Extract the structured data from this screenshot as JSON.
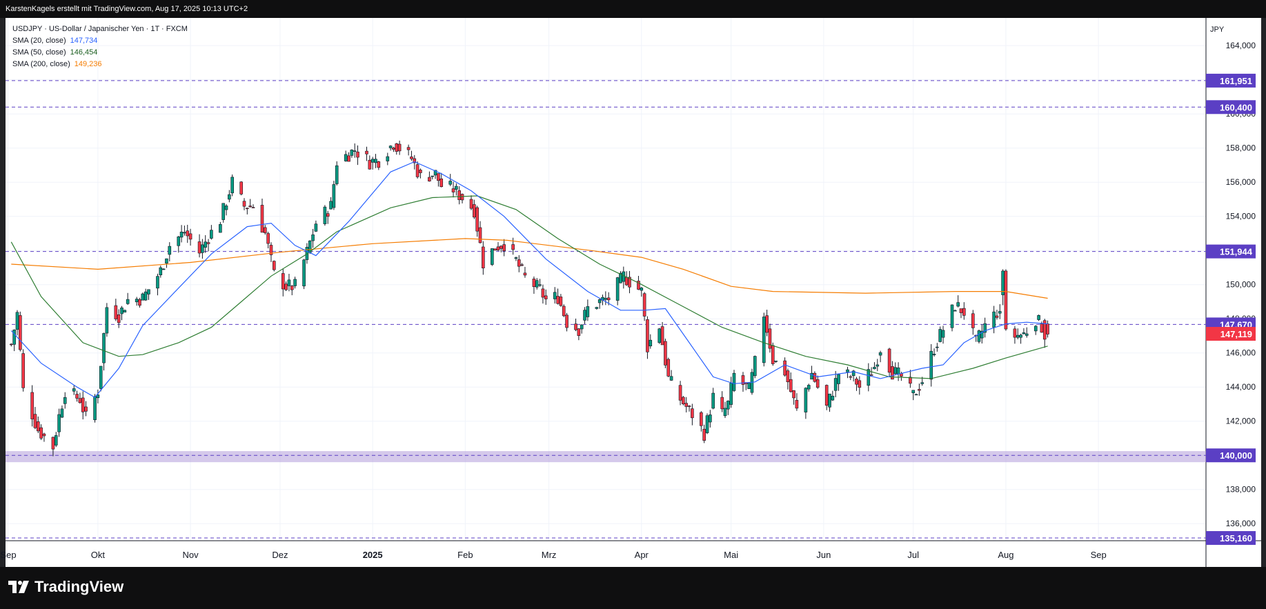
{
  "header": {
    "attribution": "KarstenKagels erstellt mit TradingView.com, Aug 17, 2025 10:13 UTC+2"
  },
  "legend": {
    "symbol": "USDJPY · US-Dollar / Japanischer Yen · 1T · FXCM",
    "indicators": [
      {
        "label": "SMA (20, close)",
        "value": "147,734",
        "color": "#2962ff"
      },
      {
        "label": "SMA (50, close)",
        "value": "146,454",
        "color": "#1b5e20"
      },
      {
        "label": "SMA (200, close)",
        "value": "149,236",
        "color": "#f57c00"
      }
    ]
  },
  "footer": {
    "brand": "TradingView"
  },
  "chart_data": {
    "type": "candlestick",
    "symbol": "USDJPY",
    "currency_label": "JPY",
    "ylim": [
      135.0,
      165.3
    ],
    "y_ticks": [
      136,
      138,
      140,
      142,
      144,
      146,
      148,
      150,
      152,
      154,
      156,
      158,
      160,
      162,
      164
    ],
    "y_tick_labels": [
      "136,000",
      "138,000",
      "140,000",
      "142,000",
      "144,000",
      "146,000",
      "148,000",
      "150,000",
      "152,000",
      "154,000",
      "156,000",
      "158,000",
      "160,000",
      "162,000",
      "164,000"
    ],
    "x_labels": [
      {
        "date": "2024-09-01",
        "label": "Sep"
      },
      {
        "date": "2024-10-01",
        "label": "Okt"
      },
      {
        "date": "2024-11-01",
        "label": "Nov"
      },
      {
        "date": "2024-12-01",
        "label": "Dez"
      },
      {
        "date": "2025-01-01",
        "label": "2025",
        "bold": true
      },
      {
        "date": "2025-02-01",
        "label": "Feb"
      },
      {
        "date": "2025-03-01",
        "label": "Mrz"
      },
      {
        "date": "2025-04-01",
        "label": "Apr"
      },
      {
        "date": "2025-05-01",
        "label": "Mai"
      },
      {
        "date": "2025-06-01",
        "label": "Jun"
      },
      {
        "date": "2025-07-01",
        "label": "Jul"
      },
      {
        "date": "2025-08-01",
        "label": "Aug"
      },
      {
        "date": "2025-09-01",
        "label": "Sep"
      }
    ],
    "x_range": [
      "2024-09-01",
      "2025-10-07"
    ],
    "horizontal_levels": [
      {
        "value": 161.951,
        "label": "161,951",
        "color": "#5b3fc4"
      },
      {
        "value": 160.4,
        "label": "160,400",
        "color": "#5b3fc4"
      },
      {
        "value": 151.944,
        "label": "151,944",
        "color": "#5b3fc4"
      },
      {
        "value": 147.67,
        "label": "147,670",
        "color": "#5b3fc4"
      },
      {
        "value": 140.0,
        "label": "140,000",
        "color": "#5b3fc4",
        "zone": [
          139.6,
          140.25
        ]
      },
      {
        "value": 135.16,
        "label": "135,160",
        "color": "#5b3fc4"
      }
    ],
    "last_price": {
      "value": 147.119,
      "label": "147,119",
      "color": "#f23645"
    },
    "colors": {
      "up": "#089981",
      "down": "#f23645",
      "wick": "#131722"
    },
    "price_path": [
      [
        "2024-09-02",
        146.5
      ],
      [
        "2024-09-04",
        148.3
      ],
      [
        "2024-09-06",
        143.8
      ],
      [
        "2024-09-11",
        141.5
      ],
      [
        "2024-09-16",
        140.5
      ],
      [
        "2024-09-18",
        142.3
      ],
      [
        "2024-09-20",
        143.8
      ],
      [
        "2024-09-25",
        143.3
      ],
      [
        "2024-09-27",
        142.2
      ],
      [
        "2024-10-01",
        143.8
      ],
      [
        "2024-10-04",
        148.7
      ],
      [
        "2024-10-08",
        148.2
      ],
      [
        "2024-10-11",
        149.1
      ],
      [
        "2024-10-16",
        149.2
      ],
      [
        "2024-10-22",
        150.8
      ],
      [
        "2024-10-25",
        152.3
      ],
      [
        "2024-10-30",
        153.1
      ],
      [
        "2024-11-04",
        151.9
      ],
      [
        "2024-11-07",
        152.8
      ],
      [
        "2024-11-11",
        153.8
      ],
      [
        "2024-11-15",
        156.0
      ],
      [
        "2024-11-19",
        154.6
      ],
      [
        "2024-11-22",
        154.6
      ],
      [
        "2024-11-26",
        153.0
      ],
      [
        "2024-11-29",
        150.6
      ],
      [
        "2024-12-03",
        149.9
      ],
      [
        "2024-12-06",
        149.9
      ],
      [
        "2024-12-10",
        151.9
      ],
      [
        "2024-12-13",
        153.6
      ],
      [
        "2024-12-18",
        154.6
      ],
      [
        "2024-12-20",
        157.2
      ],
      [
        "2024-12-26",
        157.9
      ],
      [
        "2024-12-31",
        157.2
      ],
      [
        "2025-01-03",
        157.3
      ],
      [
        "2025-01-08",
        158.3
      ],
      [
        "2025-01-10",
        158.0
      ],
      [
        "2025-01-14",
        157.4
      ],
      [
        "2025-01-17",
        156.3
      ],
      [
        "2025-01-22",
        156.5
      ],
      [
        "2025-01-24",
        155.8
      ],
      [
        "2025-01-28",
        155.6
      ],
      [
        "2025-01-31",
        155.1
      ],
      [
        "2025-02-04",
        154.4
      ],
      [
        "2025-02-07",
        151.3
      ],
      [
        "2025-02-11",
        152.2
      ],
      [
        "2025-02-14",
        152.4
      ],
      [
        "2025-02-18",
        151.4
      ],
      [
        "2025-02-21",
        150.4
      ],
      [
        "2025-02-26",
        149.7
      ],
      [
        "2025-02-28",
        149.1
      ],
      [
        "2025-03-04",
        149.3
      ],
      [
        "2025-03-07",
        147.8
      ],
      [
        "2025-03-11",
        147.4
      ],
      [
        "2025-03-14",
        148.6
      ],
      [
        "2025-03-18",
        149.0
      ],
      [
        "2025-03-21",
        149.2
      ],
      [
        "2025-03-26",
        150.5
      ],
      [
        "2025-03-28",
        150.2
      ],
      [
        "2025-04-01",
        149.6
      ],
      [
        "2025-04-03",
        146.4
      ],
      [
        "2025-04-07",
        147.6
      ],
      [
        "2025-04-10",
        144.5
      ],
      [
        "2025-04-14",
        143.3
      ],
      [
        "2025-04-18",
        142.4
      ],
      [
        "2025-04-22",
        141.3
      ],
      [
        "2025-04-25",
        143.4
      ],
      [
        "2025-04-28",
        142.4
      ],
      [
        "2025-04-30",
        143.0
      ],
      [
        "2025-05-02",
        144.7
      ],
      [
        "2025-05-07",
        143.8
      ],
      [
        "2025-05-09",
        145.4
      ],
      [
        "2025-05-12",
        148.3
      ],
      [
        "2025-05-15",
        145.6
      ],
      [
        "2025-05-19",
        144.9
      ],
      [
        "2025-05-23",
        142.6
      ],
      [
        "2025-05-28",
        144.8
      ],
      [
        "2025-06-02",
        142.8
      ],
      [
        "2025-06-06",
        144.8
      ],
      [
        "2025-06-11",
        144.6
      ],
      [
        "2025-06-13",
        144.0
      ],
      [
        "2025-06-18",
        145.2
      ],
      [
        "2025-06-20",
        146.3
      ],
      [
        "2025-06-24",
        144.9
      ],
      [
        "2025-06-27",
        144.6
      ],
      [
        "2025-07-01",
        143.5
      ],
      [
        "2025-07-04",
        144.4
      ],
      [
        "2025-07-08",
        146.3
      ],
      [
        "2025-07-11",
        147.4
      ],
      [
        "2025-07-15",
        148.8
      ],
      [
        "2025-07-18",
        148.4
      ],
      [
        "2025-07-22",
        146.6
      ],
      [
        "2025-07-25",
        147.6
      ],
      [
        "2025-07-29",
        148.4
      ],
      [
        "2025-08-01",
        147.4
      ],
      [
        "2025-08-04",
        147.0
      ],
      [
        "2025-08-07",
        147.1
      ],
      [
        "2025-08-11",
        148.0
      ],
      [
        "2025-08-15",
        147.1
      ]
    ],
    "candle_overrides": [
      {
        "date": "2025-07-31",
        "o": 149.4,
        "h": 150.9,
        "l": 148.8,
        "c": 150.8
      },
      {
        "date": "2025-08-01",
        "o": 150.8,
        "h": 150.9,
        "l": 147.3,
        "c": 147.4
      },
      {
        "date": "2025-08-14",
        "o": 147.9,
        "h": 148.0,
        "l": 146.3,
        "c": 146.8
      },
      {
        "date": "2025-08-15",
        "o": 147.7,
        "h": 147.9,
        "l": 146.9,
        "c": 147.1
      }
    ],
    "sma20": [
      [
        "2024-09-02",
        147.3
      ],
      [
        "2024-09-12",
        145.4
      ],
      [
        "2024-09-24",
        144.0
      ],
      [
        "2024-09-30",
        143.4
      ],
      [
        "2024-10-08",
        145.1
      ],
      [
        "2024-10-16",
        147.6
      ],
      [
        "2024-10-28",
        149.8
      ],
      [
        "2024-11-08",
        151.8
      ],
      [
        "2024-11-20",
        153.4
      ],
      [
        "2024-11-28",
        153.6
      ],
      [
        "2024-12-06",
        152.3
      ],
      [
        "2024-12-13",
        151.7
      ],
      [
        "2024-12-24",
        153.7
      ],
      [
        "2025-01-07",
        156.6
      ],
      [
        "2025-01-15",
        157.2
      ],
      [
        "2025-01-24",
        156.5
      ],
      [
        "2025-02-03",
        155.5
      ],
      [
        "2025-02-14",
        154.0
      ],
      [
        "2025-02-28",
        151.5
      ],
      [
        "2025-03-14",
        149.6
      ],
      [
        "2025-03-25",
        148.5
      ],
      [
        "2025-04-02",
        148.5
      ],
      [
        "2025-04-09",
        148.6
      ],
      [
        "2025-04-17",
        146.6
      ],
      [
        "2025-04-25",
        144.6
      ],
      [
        "2025-05-02",
        144.2
      ],
      [
        "2025-05-09",
        144.3
      ],
      [
        "2025-05-19",
        145.3
      ],
      [
        "2025-05-30",
        144.6
      ],
      [
        "2025-06-11",
        144.9
      ],
      [
        "2025-06-20",
        144.5
      ],
      [
        "2025-06-27",
        144.8
      ],
      [
        "2025-07-04",
        145.1
      ],
      [
        "2025-07-11",
        145.3
      ],
      [
        "2025-07-18",
        146.6
      ],
      [
        "2025-07-25",
        147.3
      ],
      [
        "2025-08-01",
        147.7
      ],
      [
        "2025-08-08",
        147.8
      ],
      [
        "2025-08-15",
        147.7
      ]
    ],
    "sma50": [
      [
        "2024-09-02",
        152.5
      ],
      [
        "2024-09-12",
        149.3
      ],
      [
        "2024-09-26",
        146.6
      ],
      [
        "2024-10-08",
        145.8
      ],
      [
        "2024-10-16",
        145.9
      ],
      [
        "2024-10-28",
        146.6
      ],
      [
        "2024-11-08",
        147.5
      ],
      [
        "2024-11-18",
        149.0
      ],
      [
        "2024-11-28",
        150.5
      ],
      [
        "2024-12-10",
        151.8
      ],
      [
        "2024-12-20",
        153.1
      ],
      [
        "2025-01-07",
        154.5
      ],
      [
        "2025-01-21",
        155.1
      ],
      [
        "2025-02-05",
        155.2
      ],
      [
        "2025-02-18",
        154.4
      ],
      [
        "2025-03-04",
        152.7
      ],
      [
        "2025-03-18",
        151.2
      ],
      [
        "2025-03-31",
        150.1
      ],
      [
        "2025-04-14",
        148.8
      ],
      [
        "2025-04-28",
        147.5
      ],
      [
        "2025-05-12",
        146.6
      ],
      [
        "2025-05-26",
        145.8
      ],
      [
        "2025-06-09",
        145.3
      ],
      [
        "2025-06-23",
        144.6
      ],
      [
        "2025-07-07",
        144.5
      ],
      [
        "2025-07-21",
        145.1
      ],
      [
        "2025-08-01",
        145.7
      ],
      [
        "2025-08-15",
        146.4
      ]
    ],
    "sma200": [
      [
        "2024-09-02",
        151.2
      ],
      [
        "2024-10-01",
        150.9
      ],
      [
        "2024-11-01",
        151.3
      ],
      [
        "2024-12-01",
        151.9
      ],
      [
        "2025-01-01",
        152.4
      ],
      [
        "2025-02-01",
        152.7
      ],
      [
        "2025-02-15",
        152.6
      ],
      [
        "2025-03-15",
        152.0
      ],
      [
        "2025-04-01",
        151.6
      ],
      [
        "2025-04-15",
        150.9
      ],
      [
        "2025-05-01",
        149.9
      ],
      [
        "2025-05-15",
        149.6
      ],
      [
        "2025-06-15",
        149.5
      ],
      [
        "2025-07-15",
        149.6
      ],
      [
        "2025-08-01",
        149.6
      ],
      [
        "2025-08-15",
        149.2
      ]
    ]
  }
}
